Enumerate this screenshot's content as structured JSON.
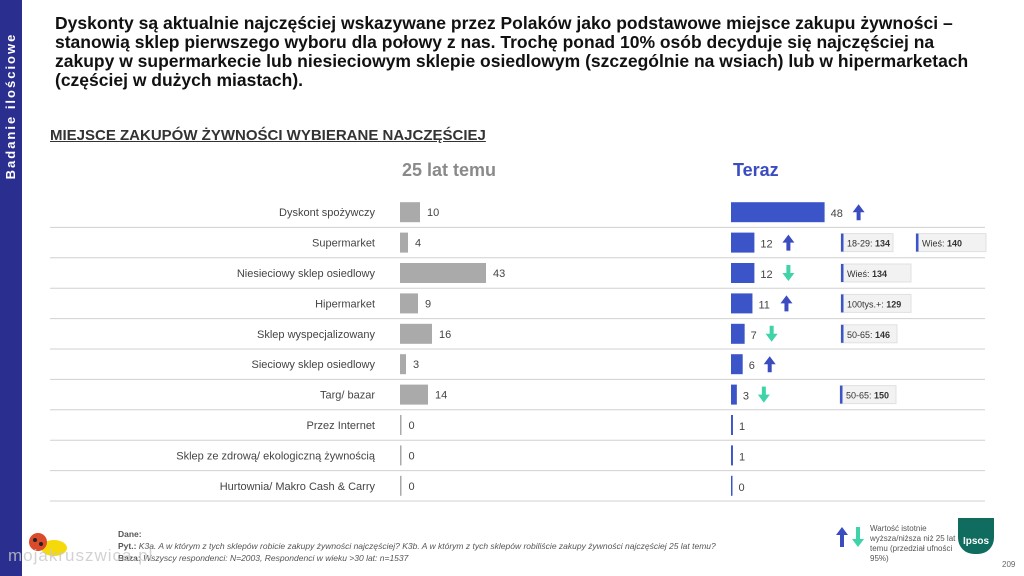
{
  "sidebar": {
    "label": "Badanie ilościowe"
  },
  "headline": "Dyskonty są aktualnie najczęściej wskazywane przez Polaków jako podstawowe miejsce zakupu żywności – stanowią sklep pierwszego wyboru dla połowy z nas. Trochę ponad 10% osób decyduje się najczęściej na zakupy w supermarkecie lub niesieciowym sklepie osiedlowym (szczególnie na wsiach) lub w hipermarketach (częściej w dużych miastach).",
  "section_title": "MIEJSCE ZAKUPÓW ŻYWNOŚCI WYBIERANE NAJCZĘŚCIEJ",
  "columns": {
    "past": "25 lat temu",
    "now": "Teraz"
  },
  "colors": {
    "past_bar": "#aaaaaa",
    "now_bar": "#3b55c9",
    "arrow_up": "#3b4cc0",
    "arrow_down": "#3fd3a8",
    "sidebar": "#2a2f8f"
  },
  "chart_data": {
    "type": "bar",
    "categories": [
      "Dyskont spożywczy",
      "Supermarket",
      "Niesieciowy sklep osiedlowy",
      "Hipermarket",
      "Sklep wyspecjalizowany",
      "Sieciowy sklep osiedlowy",
      "Targ/ bazar",
      "Przez Internet",
      "Sklep ze zdrową/ ekologiczną żywnością",
      "Hurtownia/ Makro Cash & Carry"
    ],
    "series": [
      {
        "name": "25 lat temu",
        "values": [
          10,
          4,
          43,
          9,
          16,
          3,
          14,
          0,
          0,
          0
        ]
      },
      {
        "name": "Teraz",
        "values": [
          48,
          12,
          12,
          11,
          7,
          6,
          3,
          1,
          1,
          0
        ]
      }
    ],
    "trend": [
      "up",
      "up",
      "down",
      "up",
      "down",
      "up",
      "down",
      "",
      "",
      ""
    ],
    "annotations": [
      {
        "row": 1,
        "items": [
          {
            "label": "18-29:",
            "value": "134"
          },
          {
            "label": "Wieś:",
            "value": "140"
          }
        ]
      },
      {
        "row": 2,
        "items": [
          {
            "label": "Wieś:",
            "value": "134"
          }
        ]
      },
      {
        "row": 3,
        "items": [
          {
            "label": "100tys.+:",
            "value": "129"
          }
        ]
      },
      {
        "row": 4,
        "items": [
          {
            "label": "50-65:",
            "value": "146"
          }
        ]
      },
      {
        "row": 6,
        "items": [
          {
            "label": "50-65:",
            "value": "150"
          }
        ]
      }
    ]
  },
  "footer": {
    "dane_label": "Dane:",
    "pyt_label": "Pyt.:",
    "pyt_text": "K3a. A w którym z tych sklepów robicie zakupy żywności najczęściej? K3b. A w którym z tych sklepów robiliście zakupy żywności najczęściej 25 lat temu?",
    "baza_label": "Baza:",
    "baza_text": "Wszyscy respondenci: N=2003, Respondenci w wieku >30 lat: n=1537"
  },
  "legend": {
    "text": "Wartość istotnie wyższa/niższa niż 25 lat temu (przedział ufności 95%)"
  },
  "logo": {
    "text": "Ipsos"
  },
  "page_number": "209",
  "watermark": "mojakruszwica.pl"
}
